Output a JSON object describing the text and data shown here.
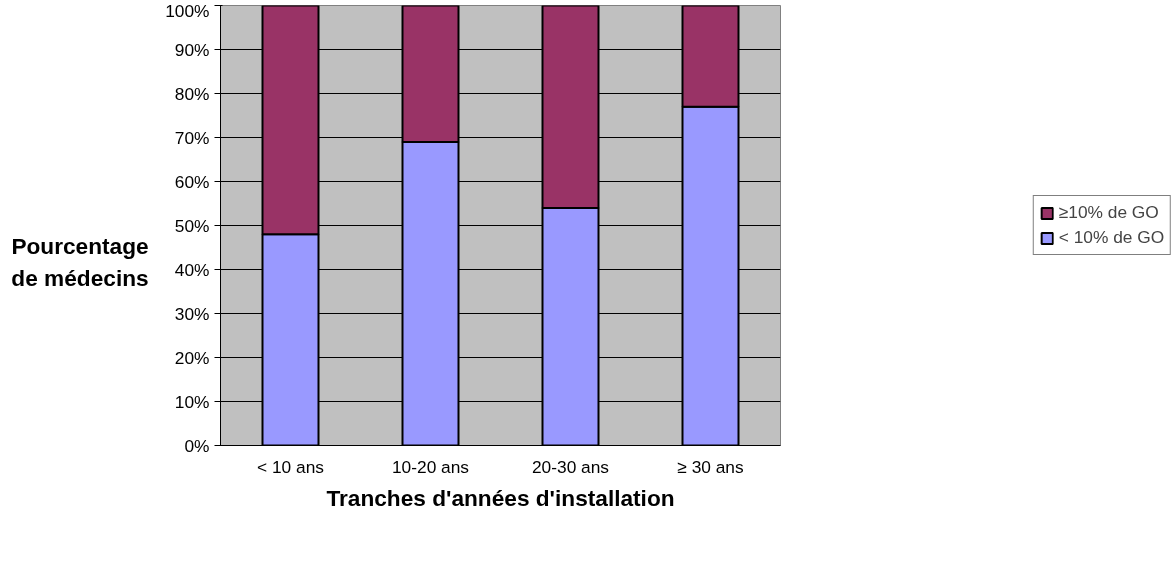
{
  "chart_data": {
    "type": "bar",
    "stacked": true,
    "xlabel": "Tranches d'années d'installation",
    "ylabel": "Pourcentage de médecins",
    "categories": [
      "< 10 ans",
      "10-20 ans",
      "20-30 ans",
      "≥ 30 ans"
    ],
    "series": [
      {
        "name": "< 10% de GO",
        "color": "#9999ff",
        "values": [
          48,
          69,
          54,
          77
        ]
      },
      {
        "name": "≥10% de GO",
        "color": "#993366",
        "values": [
          52,
          31,
          46,
          23
        ]
      }
    ],
    "ylim": [
      0,
      100
    ],
    "yticks": [
      {
        "value": 0,
        "label": "0%"
      },
      {
        "value": 10,
        "label": "10%"
      },
      {
        "value": 20,
        "label": "20%"
      },
      {
        "value": 30,
        "label": "30%"
      },
      {
        "value": 40,
        "label": "40%"
      },
      {
        "value": 50,
        "label": "50%"
      },
      {
        "value": 60,
        "label": "60%"
      },
      {
        "value": 70,
        "label": "70%"
      },
      {
        "value": 80,
        "label": "80%"
      },
      {
        "value": 90,
        "label": "90%"
      },
      {
        "value": 100,
        "label": "100%"
      }
    ],
    "grid": "y",
    "legend": "right"
  }
}
